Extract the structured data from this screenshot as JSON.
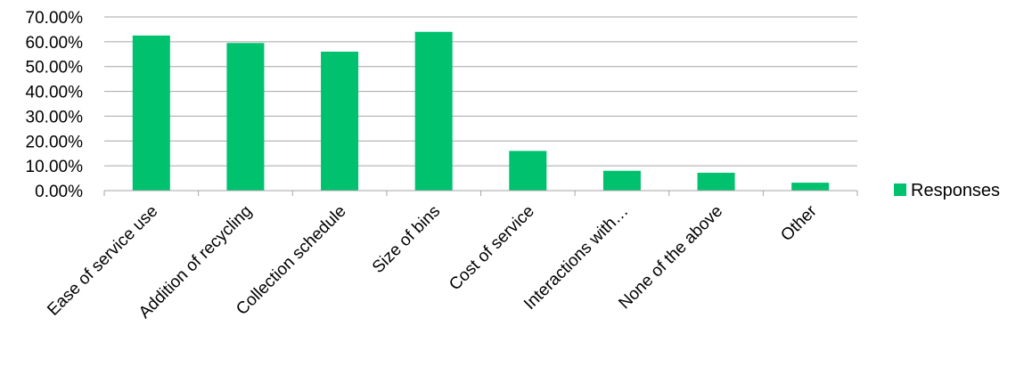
{
  "chart_data": {
    "type": "bar",
    "categories": [
      "Ease of service use",
      "Addition of recycling",
      "Collection schedule",
      "Size of bins",
      "Cost of service",
      "Interactions with…",
      "None of the above",
      "Other"
    ],
    "series": [
      {
        "name": "Responses",
        "values": [
          62.5,
          59.5,
          56.0,
          64.0,
          16.0,
          8.0,
          7.2,
          3.2
        ],
        "color": "#00c16e"
      }
    ],
    "y_ticks": [
      "0.00%",
      "10.00%",
      "20.00%",
      "30.00%",
      "40.00%",
      "50.00%",
      "60.00%",
      "70.00%"
    ],
    "ylim": [
      0,
      70
    ],
    "grid": true,
    "legend_position": "right",
    "title": "",
    "xlabel": "",
    "ylabel": ""
  }
}
